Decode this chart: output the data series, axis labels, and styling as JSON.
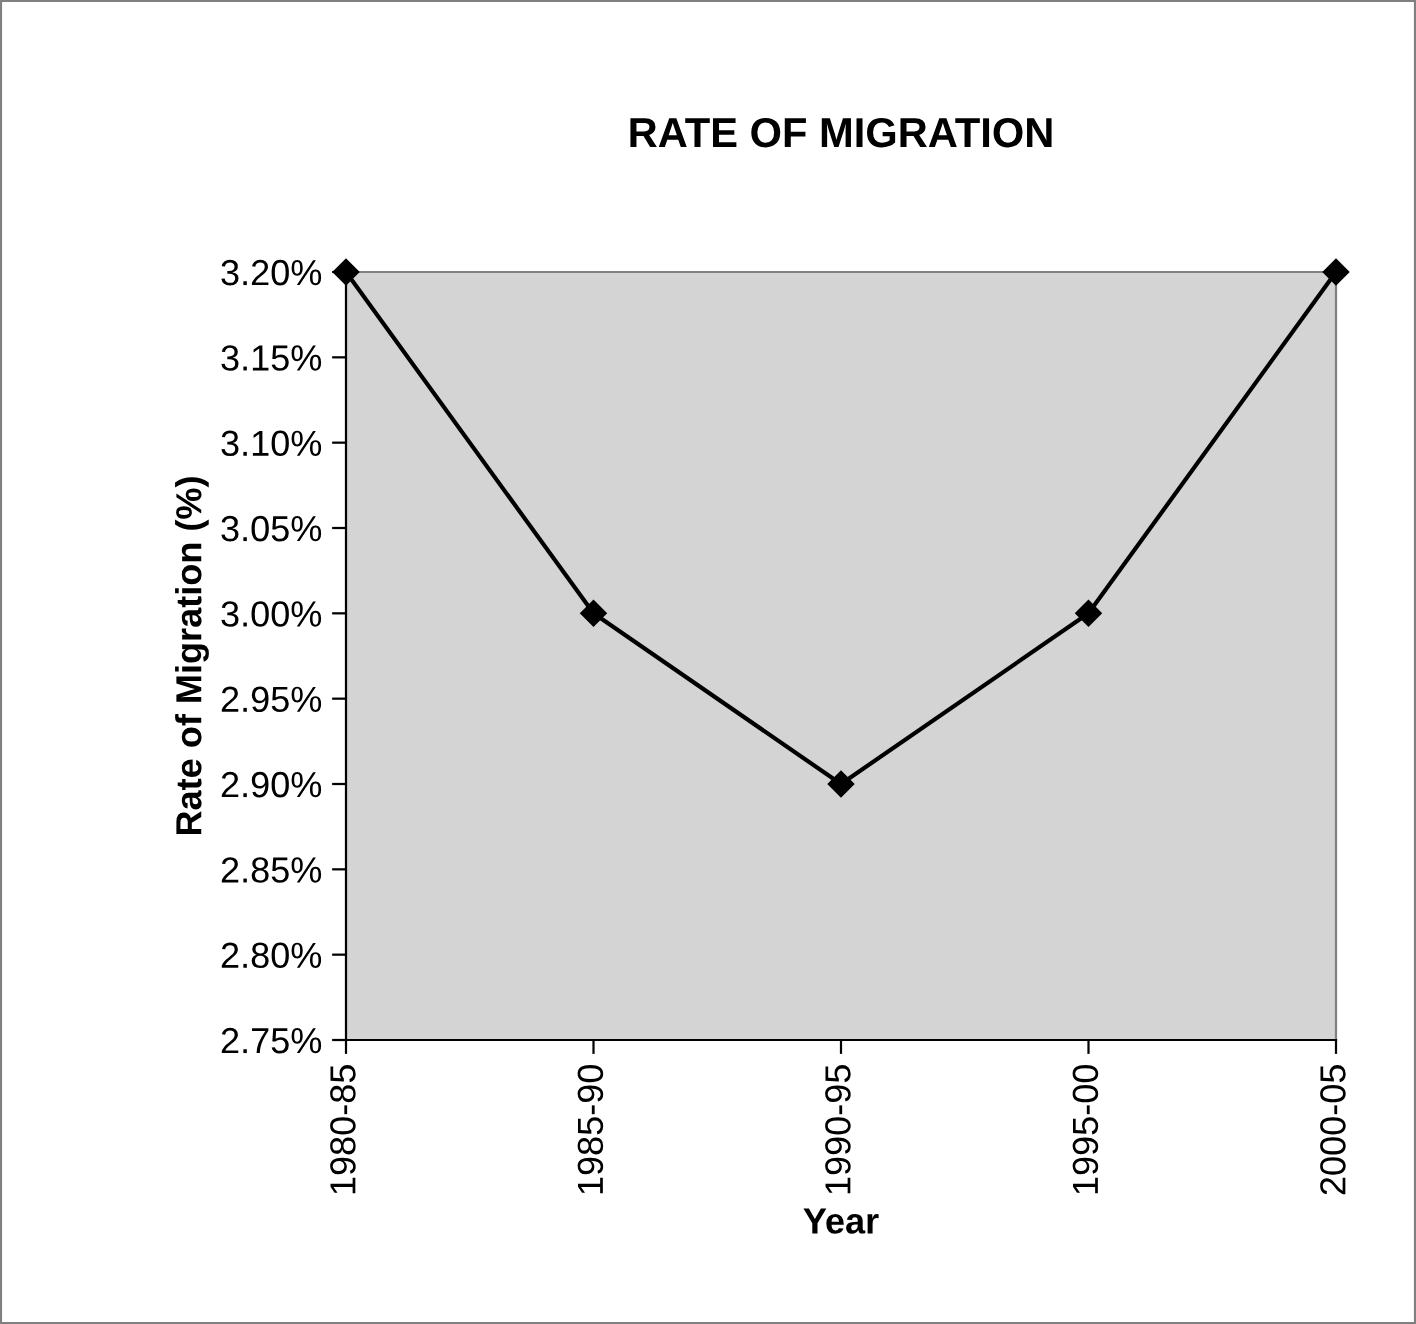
{
  "chart_data": {
    "type": "line",
    "title": "RATE OF MIGRATION",
    "xlabel": "Year",
    "ylabel": "Rate of Migration (%)",
    "categories": [
      "1980-85",
      "1985-90",
      "1990-95",
      "1995-00",
      "2000-05"
    ],
    "series": [
      {
        "color": "#000000",
        "values": [
          3.2,
          3.0,
          2.9,
          3.0,
          3.2
        ]
      }
    ],
    "ylim": [
      2.75,
      3.2
    ],
    "yticks": [
      {
        "value": 2.75,
        "label": "2.75%"
      },
      {
        "value": 2.8,
        "label": "2.80%"
      },
      {
        "value": 2.85,
        "label": "2.85%"
      },
      {
        "value": 2.9,
        "label": "2.90%"
      },
      {
        "value": 2.95,
        "label": "2.95%"
      },
      {
        "value": 3.0,
        "label": "3.00%"
      },
      {
        "value": 3.05,
        "label": "3.05%"
      },
      {
        "value": 3.1,
        "label": "3.10%"
      },
      {
        "value": 3.15,
        "label": "3.15%"
      },
      {
        "value": 3.2,
        "label": "3.20%"
      }
    ],
    "marker": "diamond",
    "line_style": "solid",
    "grid": false,
    "legend": false
  }
}
